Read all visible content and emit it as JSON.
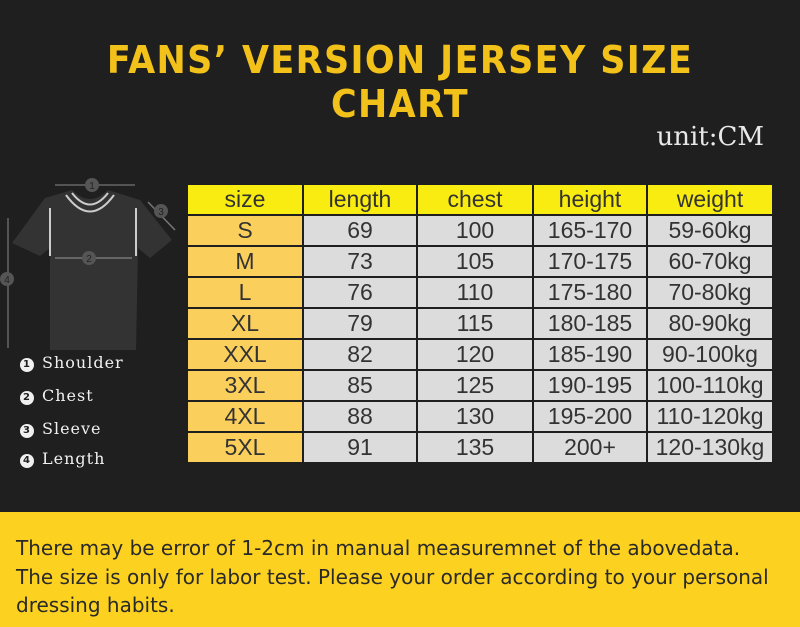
{
  "title": "FANS’ VERSION JERSEY SIZE CHART",
  "unit": "unit:CM",
  "table": {
    "headers": [
      "size",
      "length",
      "chest",
      "height",
      "weight"
    ],
    "rows": [
      [
        "S",
        "69",
        "100",
        "165-170",
        "59-60kg"
      ],
      [
        "M",
        "73",
        "105",
        "170-175",
        "60-70kg"
      ],
      [
        "L",
        "76",
        "110",
        "175-180",
        "70-80kg"
      ],
      [
        "XL",
        "79",
        "115",
        "180-185",
        "80-90kg"
      ],
      [
        "XXL",
        "82",
        "120",
        "185-190",
        "90-100kg"
      ],
      [
        "3XL",
        "85",
        "125",
        "190-195",
        "100-110kg"
      ],
      [
        "4XL",
        "88",
        "130",
        "195-200",
        "110-120kg"
      ],
      [
        "5XL",
        "91",
        "135",
        "200+",
        "120-130kg"
      ]
    ]
  },
  "legend": [
    {
      "num": "1",
      "label": "Shoulder"
    },
    {
      "num": "2",
      "label": "Chest"
    },
    {
      "num": "3",
      "label": "Sleeve"
    },
    {
      "num": "4",
      "label": "Length"
    }
  ],
  "notes": [
    "There may be error of 1-2cm in manual measuremnet of the abovedata.",
    "The size is only for labor test. Please your order according to your personal",
    "dressing habits."
  ],
  "colors": {
    "background": "#1f1f1f",
    "title": "#f2c21b",
    "header": "#f9ec10",
    "size_col": "#fbcf5c",
    "cells": "#dcdcdc",
    "banner": "#fcd11f"
  }
}
